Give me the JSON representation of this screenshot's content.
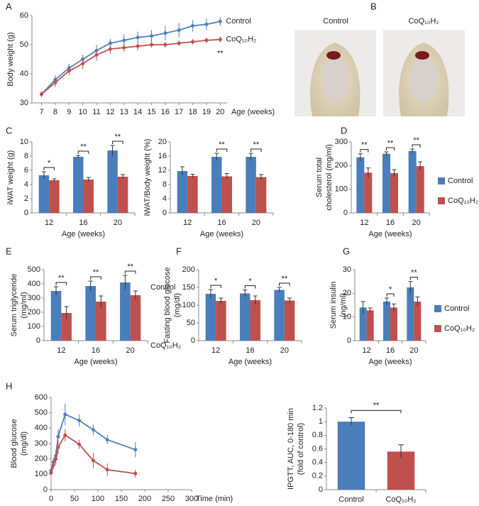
{
  "chart_data": [
    {
      "type": "line",
      "panel": "A",
      "ylabel": [
        "Body weight (g)"
      ],
      "xlabel": "Age (weeks)",
      "x": [
        7,
        8,
        9,
        10,
        11,
        12,
        13,
        14,
        15,
        16,
        17,
        18,
        19,
        20
      ],
      "xlim": [
        6.3,
        20.5
      ],
      "xticks": [
        7,
        8,
        9,
        10,
        11,
        12,
        13,
        14,
        15,
        16,
        17,
        18,
        19,
        20
      ],
      "ylim": [
        30,
        60
      ],
      "yticks": [
        30,
        40,
        50,
        60
      ],
      "series": [
        {
          "name": "Control",
          "color": "#4f81bd",
          "values": [
            33,
            38,
            42,
            45,
            48,
            50.5,
            51.5,
            52.5,
            53,
            54,
            55,
            56.5,
            57,
            58
          ],
          "errors": [
            1,
            1.5,
            1.5,
            1.5,
            2,
            1.5,
            2,
            2,
            2,
            2.5,
            2.5,
            2,
            2,
            1.5
          ]
        },
        {
          "name": "CoQ₁₀H₂",
          "color": "#c0504d",
          "values": [
            33,
            37,
            41,
            43.5,
            46.5,
            48.5,
            49,
            49.5,
            50,
            50,
            50.5,
            51,
            51.5,
            51.8
          ],
          "errors": [
            1,
            1.5,
            1.5,
            2,
            2,
            1.5,
            1.5,
            1.5,
            1,
            1,
            1,
            1,
            1,
            1
          ]
        }
      ],
      "annotation": "**"
    },
    {
      "type": "bar",
      "panel": "C",
      "ylabel": [
        "iWAT weight (g)"
      ],
      "xlabel": "Age (weeks)",
      "categories": [
        "12",
        "16",
        "20"
      ],
      "ylim": [
        0,
        10
      ],
      "yticks": [
        0,
        2,
        4,
        6,
        8,
        10
      ],
      "series": [
        {
          "color": "#4a7ebb",
          "values": [
            5.3,
            7.9,
            8.8
          ],
          "errors": [
            0.5,
            0.2,
            0.7
          ]
        },
        {
          "color": "#c0504d",
          "values": [
            4.6,
            4.7,
            5.1
          ],
          "errors": [
            0.2,
            0.3,
            0.3
          ]
        }
      ],
      "significance": [
        "*",
        "**",
        "**"
      ]
    },
    {
      "type": "bar",
      "ylabel": [
        "iWAT/Body weight (%)"
      ],
      "xlabel": "Age (weeks)",
      "categories": [
        "12",
        "16",
        "20"
      ],
      "ylim": [
        0,
        20
      ],
      "yticks": [
        0,
        4,
        8,
        12,
        16,
        20
      ],
      "series": [
        {
          "color": "#4a7ebb",
          "values": [
            11.8,
            15.8,
            15.8
          ],
          "errors": [
            1.2,
            1,
            1
          ]
        },
        {
          "color": "#c0504d",
          "values": [
            10.4,
            10.3,
            10.1
          ],
          "errors": [
            0.5,
            0.8,
            0.7
          ]
        }
      ],
      "significance": [
        null,
        "**",
        "**"
      ]
    },
    {
      "type": "bar",
      "panel": "D",
      "ylabel": [
        "Serum total",
        "cholesterol (mg/ml)"
      ],
      "xlabel": "Age (weeks)",
      "categories": [
        "12",
        "16",
        "20"
      ],
      "ylim": [
        0,
        300
      ],
      "yticks": [
        0,
        100,
        200,
        300
      ],
      "legend": "right",
      "series": [
        {
          "name": "Control",
          "color": "#4a7ebb",
          "values": [
            235,
            250,
            262
          ],
          "errors": [
            15,
            8,
            8
          ]
        },
        {
          "name": "CoQ₁₀H₂",
          "color": "#c0504d",
          "values": [
            170,
            168,
            198
          ],
          "errors": [
            20,
            15,
            18
          ]
        }
      ],
      "significance": [
        "**",
        "**",
        "**"
      ]
    },
    {
      "type": "bar",
      "panel": "E",
      "ylabel": [
        "Serum triglyceride",
        "(mg/ml)"
      ],
      "xlabel": "Age (weeks)",
      "categories": [
        "12",
        "16",
        "20"
      ],
      "ylim": [
        0,
        500
      ],
      "yticks": [
        0,
        100,
        200,
        300,
        400,
        500
      ],
      "series": [
        {
          "color": "#4a7ebb",
          "values": [
            350,
            385,
            410
          ],
          "errors": [
            30,
            35,
            50
          ]
        },
        {
          "color": "#c0504d",
          "values": [
            195,
            275,
            320
          ],
          "errors": [
            45,
            40,
            30
          ]
        }
      ],
      "significance": [
        "**",
        "**",
        "**"
      ]
    },
    {
      "type": "bar",
      "panel": "F",
      "ylabel": [
        "Fasting blood glucose",
        "(mg/dl)"
      ],
      "xlabel": "Age (weeks)",
      "categories": [
        "12",
        "16",
        "20"
      ],
      "ylim": [
        0,
        200
      ],
      "yticks": [
        0,
        50,
        100,
        150,
        200
      ],
      "series": [
        {
          "color": "#4a7ebb",
          "values": [
            132,
            133,
            143
          ],
          "errors": [
            12,
            10,
            7
          ]
        },
        {
          "color": "#c0504d",
          "values": [
            112,
            114,
            113
          ],
          "errors": [
            8,
            12,
            7
          ]
        }
      ],
      "significance": [
        "*",
        "*",
        "**"
      ]
    },
    {
      "type": "bar",
      "panel": "G",
      "ylabel": [
        "Serum insulin",
        "(ng/ml)"
      ],
      "xlabel": "Age (weeks)",
      "categories": [
        "12",
        "16",
        "20"
      ],
      "ylim": [
        0,
        30
      ],
      "yticks": [
        0,
        10,
        20,
        30
      ],
      "legend": "right",
      "series": [
        {
          "name": "Control",
          "color": "#4a7ebb",
          "values": [
            14,
            16.5,
            22.5
          ],
          "errors": [
            2.5,
            1.5,
            2.5
          ]
        },
        {
          "name": "CoQ₁₀H₂",
          "color": "#c0504d",
          "values": [
            12.8,
            14,
            16.5
          ],
          "errors": [
            1,
            1.5,
            2
          ]
        }
      ],
      "significance": [
        null,
        "*",
        "**"
      ]
    },
    {
      "type": "line",
      "panel": "H",
      "ylabel": [
        "Blood glucose",
        "(mg/dl)"
      ],
      "xlabel": "Time (min)",
      "x": [
        0,
        5,
        10,
        15,
        30,
        60,
        90,
        120,
        180
      ],
      "xlim": [
        0,
        300
      ],
      "xticks": [
        0,
        50,
        100,
        150,
        200,
        250,
        300
      ],
      "ylim": [
        0,
        600
      ],
      "yticks": [
        0,
        100,
        200,
        300,
        400,
        500,
        600
      ],
      "series": [
        {
          "name": "Control",
          "color": "#4f81bd",
          "values": [
            125,
            180,
            220,
            345,
            490,
            450,
            390,
            325,
            260
          ],
          "errors": [
            15,
            30,
            40,
            50,
            70,
            40,
            35,
            30,
            50
          ]
        },
        {
          "name": "CoQ₁₀H₂",
          "color": "#c0504d",
          "values": [
            110,
            160,
            200,
            275,
            355,
            295,
            190,
            130,
            105
          ],
          "errors": [
            15,
            25,
            35,
            45,
            40,
            30,
            50,
            40,
            25
          ]
        }
      ]
    },
    {
      "type": "bar",
      "ylabel": [
        "IPGTT, AUC, 0-180 min",
        "(fold of control)"
      ],
      "categories": [
        "Control",
        "CoQ₁₀H₂"
      ],
      "ylim": [
        0,
        1.2
      ],
      "yticks": [
        0,
        0.2,
        0.4,
        0.6,
        0.8,
        1,
        1.2
      ],
      "values": [
        1,
        0.56
      ],
      "errors": [
        0.06,
        0.1
      ],
      "colors": [
        "#4a7ebb",
        "#c0504d"
      ],
      "significance": "**"
    }
  ],
  "photo_panel": {
    "panel": "B",
    "labels": [
      "Control",
      "CoQ₁₀H₂"
    ]
  }
}
